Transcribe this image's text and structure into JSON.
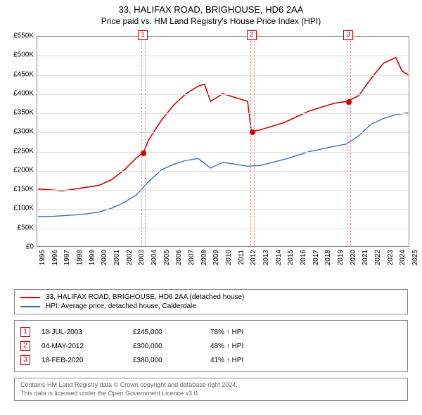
{
  "title": {
    "line1": "33, HALIFAX ROAD, BRIGHOUSE, HD6 2AA",
    "line2": "Price paid vs. HM Land Registry's House Price Index (HPI)"
  },
  "chart": {
    "type": "line",
    "background_color": "#ffffff",
    "grid_color": "#dddddd",
    "border_color": "#888888",
    "x": {
      "min": 1995,
      "max": 2025,
      "ticks": [
        1995,
        1996,
        1997,
        1998,
        1999,
        2000,
        2001,
        2002,
        2003,
        2004,
        2005,
        2006,
        2007,
        2008,
        2009,
        2010,
        2011,
        2012,
        2013,
        2014,
        2015,
        2016,
        2017,
        2018,
        2019,
        2020,
        2021,
        2022,
        2023,
        2024,
        2025
      ]
    },
    "y": {
      "min": 0,
      "max": 550000,
      "tick_step": 50000,
      "ticks": [
        "£0",
        "£50K",
        "£100K",
        "£150K",
        "£200K",
        "£250K",
        "£300K",
        "£350K",
        "£400K",
        "£450K",
        "£500K",
        "£550K"
      ]
    },
    "series": [
      {
        "name": "33, HALIFAX ROAD, BRIGHOUSE, HD6 2AA (detached house)",
        "color": "#d00000",
        "line_width": 1.6,
        "data": [
          [
            1995,
            150000
          ],
          [
            1996,
            148000
          ],
          [
            1997,
            145000
          ],
          [
            1998,
            150000
          ],
          [
            1999,
            155000
          ],
          [
            2000,
            160000
          ],
          [
            2001,
            175000
          ],
          [
            2002,
            200000
          ],
          [
            2003,
            232000
          ],
          [
            2003.55,
            245000
          ],
          [
            2004,
            280000
          ],
          [
            2005,
            330000
          ],
          [
            2006,
            370000
          ],
          [
            2007,
            400000
          ],
          [
            2008,
            420000
          ],
          [
            2008.5,
            425000
          ],
          [
            2009,
            380000
          ],
          [
            2010,
            400000
          ],
          [
            2011,
            390000
          ],
          [
            2012,
            380000
          ],
          [
            2012.3,
            300000
          ],
          [
            2013,
            305000
          ],
          [
            2014,
            315000
          ],
          [
            2015,
            325000
          ],
          [
            2016,
            340000
          ],
          [
            2017,
            355000
          ],
          [
            2018,
            365000
          ],
          [
            2019,
            375000
          ],
          [
            2020.1,
            380000
          ],
          [
            2021,
            395000
          ],
          [
            2022,
            440000
          ],
          [
            2023,
            480000
          ],
          [
            2024,
            495000
          ],
          [
            2024.5,
            460000
          ],
          [
            2025,
            450000
          ]
        ]
      },
      {
        "name": "HPI: Average price, detached house, Calderdale",
        "color": "#3a6fb7",
        "line_width": 1.4,
        "data": [
          [
            1995,
            78000
          ],
          [
            1996,
            78000
          ],
          [
            1997,
            80000
          ],
          [
            1998,
            82000
          ],
          [
            1999,
            85000
          ],
          [
            2000,
            90000
          ],
          [
            2001,
            100000
          ],
          [
            2002,
            115000
          ],
          [
            2003,
            135000
          ],
          [
            2004,
            170000
          ],
          [
            2005,
            200000
          ],
          [
            2006,
            215000
          ],
          [
            2007,
            225000
          ],
          [
            2008,
            230000
          ],
          [
            2009,
            205000
          ],
          [
            2010,
            220000
          ],
          [
            2011,
            215000
          ],
          [
            2012,
            210000
          ],
          [
            2013,
            212000
          ],
          [
            2014,
            220000
          ],
          [
            2015,
            228000
          ],
          [
            2016,
            238000
          ],
          [
            2017,
            248000
          ],
          [
            2018,
            255000
          ],
          [
            2019,
            262000
          ],
          [
            2020,
            268000
          ],
          [
            2021,
            290000
          ],
          [
            2022,
            320000
          ],
          [
            2023,
            335000
          ],
          [
            2024,
            345000
          ],
          [
            2025,
            350000
          ]
        ]
      }
    ],
    "markers": [
      {
        "num": "1",
        "year": 2003.55
      },
      {
        "num": "2",
        "year": 2012.3
      },
      {
        "num": "3",
        "year": 2020.1
      }
    ],
    "sale_points": [
      {
        "year": 2003.55,
        "price": 245000
      },
      {
        "year": 2012.3,
        "price": 300000
      },
      {
        "year": 2020.1,
        "price": 380000
      }
    ]
  },
  "legend": {
    "items": [
      {
        "color": "#d00000",
        "label": "33, HALIFAX ROAD, BRIGHOUSE, HD6 2AA (detached house)"
      },
      {
        "color": "#3a6fb7",
        "label": "HPI: Average price, detached house, Calderdale"
      }
    ]
  },
  "sales": [
    {
      "num": "1",
      "date": "18-JUL-2003",
      "price": "£245,000",
      "delta": "78% ↑ HPI"
    },
    {
      "num": "2",
      "date": "04-MAY-2012",
      "price": "£300,000",
      "delta": "48% ↑ HPI"
    },
    {
      "num": "3",
      "date": "18-FEB-2020",
      "price": "£380,000",
      "delta": "41% ↑ HPI"
    }
  ],
  "footer": {
    "line1": "Contains HM Land Registry data © Crown copyright and database right 2024.",
    "line2": "This data is licensed under the Open Government Licence v3.0."
  }
}
